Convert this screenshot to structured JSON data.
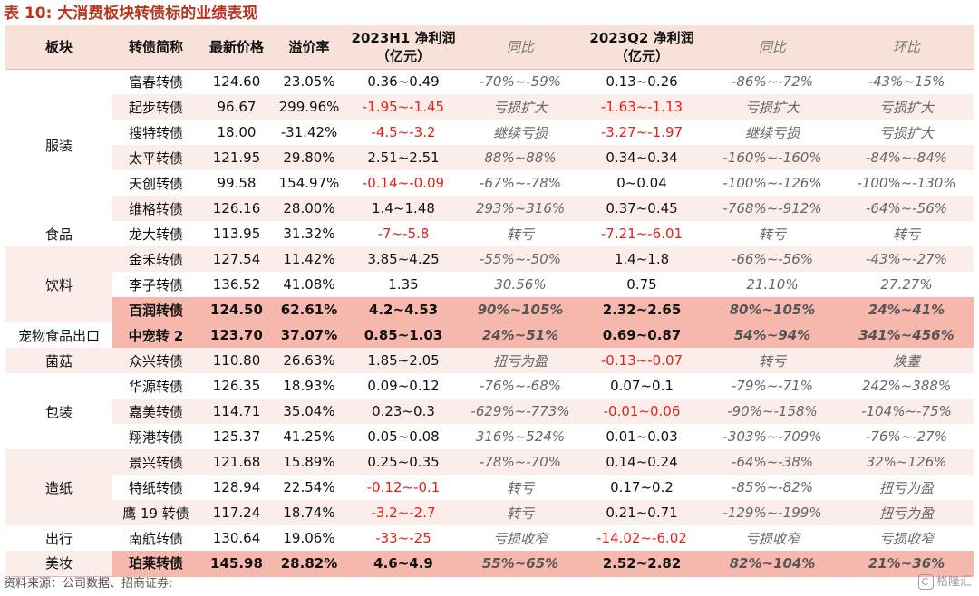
{
  "title": "表 10:  大消费板块转债标的业绩表现",
  "headers": {
    "sector": "板块",
    "name": "转债简称",
    "price": "最新价格",
    "premium": "溢价率",
    "h1": "2023H1 净利润",
    "h1_unit": "（亿元）",
    "h1_yoy": "同比",
    "q2": "2023Q2 净利润",
    "q2_unit": "（亿元）",
    "q2_yoy": "同比",
    "q2_qoq": "环比"
  },
  "sectors": {
    "s1": "服装",
    "s2": "食品",
    "s3": "饮料",
    "s4": "宠物食品出口",
    "s5": "菌菇",
    "s6": "包装",
    "s7": "造纸",
    "s8": "出行",
    "s9": "美妆"
  },
  "rows": [
    {
      "name": "富春转债",
      "price": "124.60",
      "premium": "23.05%",
      "h1": "0.36~0.49",
      "h1_yoy": "-70%~-59%",
      "q2": "0.13~0.26",
      "q2_yoy": "-86%~-72%",
      "q2_qoq": "-43%~15%"
    },
    {
      "name": "起步转债",
      "price": "96.67",
      "premium": "299.96%",
      "h1": "-1.95~-1.45",
      "h1_yoy": "亏损扩大",
      "q2": "-1.63~-1.13",
      "q2_yoy": "亏损扩大",
      "q2_qoq": "亏损扩大"
    },
    {
      "name": "搜特转债",
      "price": "18.00",
      "premium": "-31.42%",
      "h1": "-4.5~-3.2",
      "h1_yoy": "继续亏损",
      "q2": "-3.27~-1.97",
      "q2_yoy": "继续亏损",
      "q2_qoq": "亏损扩大"
    },
    {
      "name": "太平转债",
      "price": "121.95",
      "premium": "29.80%",
      "h1": "2.51~2.51",
      "h1_yoy": "88%~88%",
      "q2": "0.34~0.34",
      "q2_yoy": "-160%~-160%",
      "q2_qoq": "-84%~-84%"
    },
    {
      "name": "天创转债",
      "price": "99.58",
      "premium": "154.97%",
      "h1": "-0.14~-0.09",
      "h1_yoy": "-67%~-78%",
      "q2": "0~0.04",
      "q2_yoy": "-100%~-126%",
      "q2_qoq": "-100%~-130%"
    },
    {
      "name": "维格转债",
      "price": "126.16",
      "premium": "28.00%",
      "h1": "1.4~1.48",
      "h1_yoy": "293%~316%",
      "q2": "0.37~0.45",
      "q2_yoy": "-768%~-912%",
      "q2_qoq": "-64%~-56%"
    },
    {
      "name": "龙大转债",
      "price": "113.95",
      "premium": "31.32%",
      "h1": "-7~-5.8",
      "h1_yoy": "转亏",
      "q2": "-7.21~-6.01",
      "q2_yoy": "转亏",
      "q2_qoq": "转亏"
    },
    {
      "name": "金禾转债",
      "price": "127.54",
      "premium": "11.42%",
      "h1": "3.85~4.25",
      "h1_yoy": "-55%~-50%",
      "q2": "1.4~1.8",
      "q2_yoy": "-66%~-56%",
      "q2_qoq": "-43%~-27%"
    },
    {
      "name": "李子转债",
      "price": "136.52",
      "premium": "41.08%",
      "h1": "1.35",
      "h1_yoy": "30.56%",
      "q2": "0.75",
      "q2_yoy": "21.10%",
      "q2_qoq": "27.27%"
    },
    {
      "name": "百润转债",
      "price": "124.50",
      "premium": "62.61%",
      "h1": "4.2~4.53",
      "h1_yoy": "90%~105%",
      "q2": "2.32~2.65",
      "q2_yoy": "80%~105%",
      "q2_qoq": "24%~41%"
    },
    {
      "name": "中宠转 2",
      "price": "123.70",
      "premium": "37.07%",
      "h1": "0.85~1.03",
      "h1_yoy": "24%~51%",
      "q2": "0.69~0.87",
      "q2_yoy": "54%~94%",
      "q2_qoq": "341%~456%"
    },
    {
      "name": "众兴转债",
      "price": "110.80",
      "premium": "26.63%",
      "h1": "1.85~2.05",
      "h1_yoy": "扭亏为盈",
      "q2": "-0.13~-0.07",
      "q2_yoy": "转亏",
      "q2_qoq": "焕耋"
    },
    {
      "name": "华源转债",
      "price": "126.35",
      "premium": "18.93%",
      "h1": "0.09~0.12",
      "h1_yoy": "-76%~-68%",
      "q2": "0.07~0.1",
      "q2_yoy": "-79%~-71%",
      "q2_qoq": "242%~388%"
    },
    {
      "name": "嘉美转债",
      "price": "114.71",
      "premium": "35.04%",
      "h1": "0.23~0.3",
      "h1_yoy": "-629%~-773%",
      "q2": "-0.01~0.06",
      "q2_yoy": "-90%~-158%",
      "q2_qoq": "-104%~-75%"
    },
    {
      "name": "翔港转债",
      "price": "125.37",
      "premium": "41.25%",
      "h1": "0.05~0.08",
      "h1_yoy": "316%~524%",
      "q2": "0.01~0.03",
      "q2_yoy": "-303%~-709%",
      "q2_qoq": "-76%~-27%"
    },
    {
      "name": "景兴转债",
      "price": "121.68",
      "premium": "15.89%",
      "h1": "0.25~0.35",
      "h1_yoy": "-78%~-70%",
      "q2": "0.14~0.24",
      "q2_yoy": "-64%~-38%",
      "q2_qoq": "32%~126%"
    },
    {
      "name": "特纸转债",
      "price": "128.94",
      "premium": "22.54%",
      "h1": "-0.12~-0.1",
      "h1_yoy": "转亏",
      "q2": "0.17~0.2",
      "q2_yoy": "-85%~-82%",
      "q2_qoq": "扭亏为盈"
    },
    {
      "name": "鹰 19 转债",
      "price": "117.24",
      "premium": "18.74%",
      "h1": "-3.2~-2.7",
      "h1_yoy": "转亏",
      "q2": "0.21~0.71",
      "q2_yoy": "-129%~-199%",
      "q2_qoq": "扭亏为盈"
    },
    {
      "name": "南航转债",
      "price": "130.64",
      "premium": "19.06%",
      "h1": "-33~-25",
      "h1_yoy": "亏损收窄",
      "q2": "-14.02~-6.02",
      "q2_yoy": "亏损收窄",
      "q2_qoq": "亏损收窄"
    },
    {
      "name": "珀莱转债",
      "price": "145.98",
      "premium": "28.82%",
      "h1": "4.6~4.9",
      "h1_yoy": "55%~65%",
      "q2": "2.52~2.82",
      "q2_yoy": "82%~104%",
      "q2_qoq": "21%~36%"
    }
  ],
  "source": "资料来源：公司数据、招商证券;",
  "watermark": "格隆汇",
  "colors": {
    "title": "#b8361f",
    "negative": "#e2231a",
    "highlight": "#f6b8ad",
    "band": "#fbeeea",
    "header": "#f7e1d8"
  }
}
